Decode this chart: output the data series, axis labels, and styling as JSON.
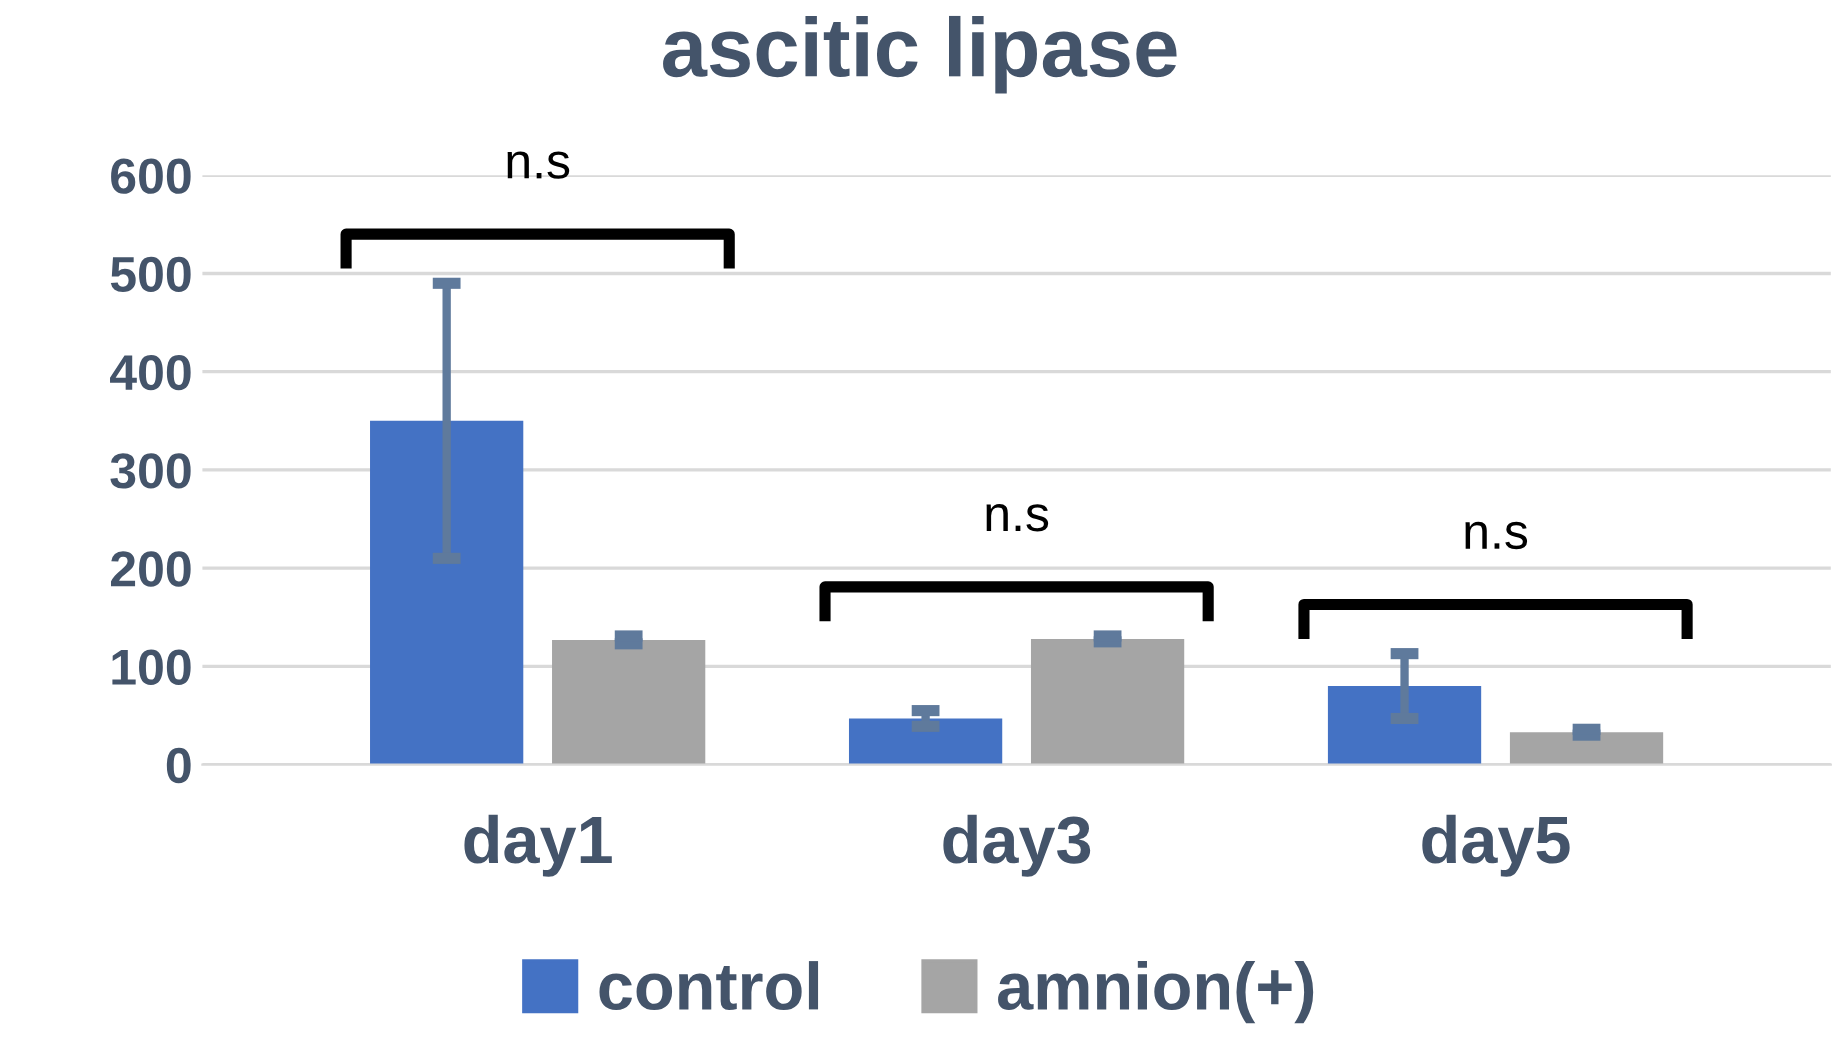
{
  "chart_data": {
    "type": "bar",
    "title": "ascitic lipase",
    "categories": [
      "day1",
      "day3",
      "day5"
    ],
    "series": [
      {
        "name": "control",
        "color": "#4472c4",
        "values": [
          350,
          47,
          80
        ],
        "errors": [
          140,
          8,
          33
        ]
      },
      {
        "name": "amnion(+)",
        "color": "#a5a5a5",
        "values": [
          127,
          128,
          33
        ],
        "errors": [
          4,
          3,
          3
        ]
      }
    ],
    "ylim": [
      0,
      600
    ],
    "yticks": [
      0,
      100,
      200,
      300,
      400,
      500,
      600
    ],
    "grid": "y",
    "legend": "bottom",
    "annotations": [
      "n.s",
      "n.s",
      "n.s"
    ]
  }
}
